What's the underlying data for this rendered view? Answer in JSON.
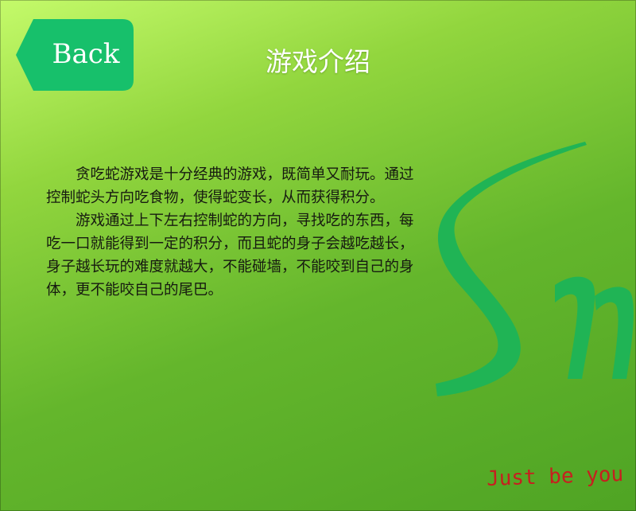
{
  "header": {
    "back_label": "Back",
    "title": "游戏介绍"
  },
  "intro": {
    "paragraphs": [
      "贪吃蛇游戏是十分经典的游戏，既简单又耐玩。通过控制蛇头方向吃食物，使得蛇变长，从而获得积分。",
      "游戏通过上下左右控制蛇的方向，寻找吃的东西，每吃一口就能得到一定的积分，而且蛇的身子会越吃越长，身子越长玩的难度就越大，不能碰墙，不能咬到自己的身体，更不能咬自己的尾巴。"
    ]
  },
  "footer": {
    "tagline": "Just be you"
  },
  "colors": {
    "back_button": "#17c06b",
    "logo": "#20b455",
    "tagline": "#c71f1f",
    "text": "#161a10"
  },
  "icons": {
    "logo": "snake-logo-letters"
  }
}
